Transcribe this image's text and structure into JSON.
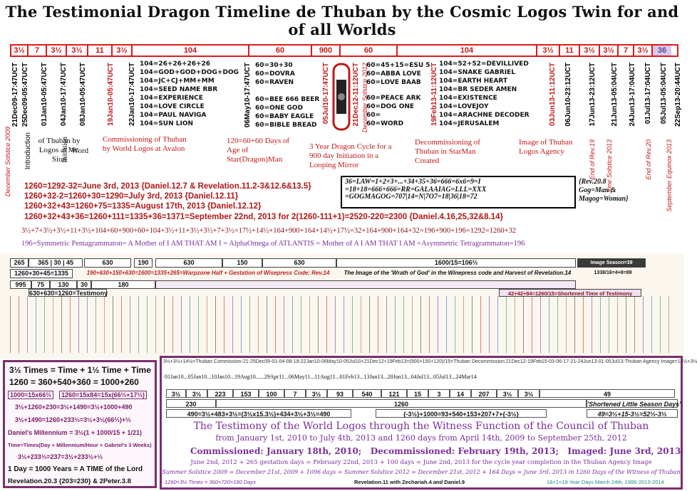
{
  "title": "The Testimonial Dragon Timeline de Thuban by the Cosmic Logos Twin for and of all Worlds",
  "timeline": {
    "segments": [
      "3½",
      "7",
      "3½",
      "3½",
      "11",
      "3½",
      "104",
      "60",
      "900",
      "60",
      "104",
      "3½",
      "11",
      "3½",
      "3½",
      "7",
      "3½",
      "36"
    ]
  },
  "dates_left": [
    "December Solstice 2009",
    "21Dec09-17:47UCT",
    "25Dec09-05:47UCT",
    "Introduction",
    "01Jan10-05:47UCT",
    "04Jan10-17:47UCT",
    "08Jan10-05:47UCT",
    "19Jan10-05:47UCT",
    "22Jan10-17:47UCT",
    "06May10-17:47UCT",
    "05Jul10-17:47UCT",
    "21Dec12-11:12UCT",
    "December Solstice 2012",
    "19Feb13-11:12UCT"
  ],
  "dates_right": [
    "03Jun13-11:12UCT",
    "06Jun10-23:12UCT",
    "17Jun13-23:12UCT",
    "End of Rev.19",
    "June Solstice 2013",
    "21Jun13-05:04UCT",
    "24Jun13-17:04UCT",
    "01Jul13-17:04UCT",
    "End of Rev.20",
    "05Jul13-05:04UCT",
    "September Equinox 2013",
    "22Sep13-20:44UCT"
  ],
  "stack_104_left": [
    "104=26+26+26+26",
    "104=GOD+GOD+DOG+DOG",
    "104=JC+CJ+MM+MM",
    "104=SEED NAME RBR",
    "104=EXPERIENCE",
    "104=LOVE CIRCLE",
    "104=PAUL NAVIGA",
    "104=SUN LION"
  ],
  "stack_60_left_top": [
    "60=30+30",
    "60=DOVRA",
    "60=RAVEN"
  ],
  "stack_60_left_bottom": [
    "60=BEE 666 BEER",
    "60=ONE GOD",
    "60=BABY EAGLE",
    "60=BIBLE BREAD"
  ],
  "stack_60_right_top": [
    "60=45+15=ESU 5",
    "60=ABBA LOVE",
    "60=LOVE BAAB"
  ],
  "stack_60_right_bottom": [
    "60=PEACE ARK",
    "60=DOG ONE",
    "60=",
    "60=WORD"
  ],
  "stack_104_right": [
    "104=52+52=DEVILLIVED",
    "104=SNAKE GABRIEL",
    "104=EARTH HEART",
    "104=BR SEDER AMEN",
    "104=EXISTENCE",
    "104=LOVEJOY",
    "104=ARACHNE DECODER",
    "104=JERUSALEM"
  ],
  "notes": {
    "of_thuban": "of Thuban by Logos at Mt. Sion",
    "initiation": "Initiation",
    "word": "Word",
    "commissioning": "Commissioning of Thuban by World Logos at Avalon",
    "days_age": "120=60+60 Days of Age of Star(Dragon)Man",
    "dragon_cycle": "3 Year Dragon Cycle for a 900 day Initiation in a Looping Mirror",
    "decommissioning": "Decommissioning of Thuban in StarMan Created",
    "image_agency": "Image of Thuban Logos Agency"
  },
  "equations": [
    "1260=1292-32=June 3rd, 2013 {Daniel.12.7 & Revelation.11.2-3&12.6&13.5}",
    "1260+32-2=1260+30=1290=July 3rd, 2013 {Daniel.12.11}",
    "1260+32+43=1260+75=1335=August 17th, 2013 {Daniel.12.12}",
    "1260+32+43+36=1260+111=1335+36=1371=September 22nd, 2013 for 2(1260-111+1)=2520-220=2300 {Daniel.4.16,25,32&8.14}"
  ],
  "eqbox": [
    "36=LAW=1+2+3+...+34+35+36=666=6x6=9=I",
    "=18+18=666+666=RR=GALAAIAG=LLL=XXX",
    "=GOGMAGOG=707|14=N|7O7=18|36|18=72"
  ],
  "rev_note": [
    "{Rev.20.8",
    "Gog=Man &",
    "Magog=Woman}"
  ],
  "sum_line": "3½+7+3½+3½+11+3½+104+60+900+60+104+3½+11+3½+3½+7+3½=17½+14½+164+900+164+14½+17½=32+164+900+164+32=196+900+196=1292=1260+32",
  "sym_line": "196=Symmetric Pentagrammaton= A Mother of I AM THAT AM I = AlphaOmega of ATLANTIS = Mother of A I AM THAT I AM =Asymmetric Tetragrammaton=196",
  "chart_band": {
    "top_cells": [
      "265",
      "630",
      "365",
      "30",
      "45",
      "190",
      "630",
      "150",
      "630",
      "1600/15=106⅔",
      "Image Season=39",
      "1338/16=4+8=89"
    ],
    "caption_a": "190+630+150+630=1600=1335+265=Warpzone Half + Gestation of Wisepress Code; Rev.14",
    "caption_b": "The Image of the 'Wrath of God' in the Winepress code and Harvest of Revelation.14",
    "row2": [
      "1260+30+45=1335",
      "995",
      "75",
      "130",
      "30",
      "180"
    ],
    "row3": "630+630=1260=Testimony",
    "short_time": "42+42+84=1260/15=Shortened Time of Testimony",
    "thuban_line": "3½+3½+14½=Thuban Commission-21-25Dec09-01-04-08-19-22Jan10-06May10-05Jul10+21Dec12+19Feb13=(900+150+120)/15=Thuban Decommission:21Dec12-19Feb15-03-06-17-21-24Jun13-01-05Jul13-Thuban Agency Image=14½+3½"
  },
  "bottom_left": {
    "l1": "3½ Times = Time + 1½ Time + Time",
    "l2": "1260 = 360+540+360 = 1000+260",
    "l3a": "1000=15x66⅔",
    "l3b": "1260=15x84=15x(66⅔+17⅓)",
    "l4": "3½+1260+230=3½+1490=3½+1000+490",
    "l5": "3½+1490=1260+233⅓=3½+3½(66⅔)+⅓",
    "l6": "Daniel's Millennium = 3½(1 + 1000/15 + 1/21)",
    "l7": "Time=Times(Day + Millennium/Hour + Gabriel's 3 Weeks)",
    "l8": "3½+233⅓=237=3½+233½+⅓",
    "l9": "1 Day = 1000 Years = A TIME of the Lord",
    "l10": "Revelation.20.3 {203=230} & 2Peter.3.8"
  },
  "bottom_right": {
    "dates_row": "01Jan10...05Jan10...10Jan10...19Aug10......29Apr11...06May11...11Aug11...01Feb13...13Jun13...20Jun13...04Jul13...05Jul13...24Mar14",
    "values_row": [
      "3½",
      "3½",
      "223",
      "153",
      "100",
      "7",
      "3½",
      "93",
      "540",
      "121",
      "15",
      "3",
      "14",
      "207",
      "3½",
      "3½",
      "49"
    ],
    "mid_row": [
      "230",
      "1260",
      "'Shortened Little Season Days'"
    ],
    "calc_a": "490=3½+483+3½=(3½x15.3½)+434+3½+3½=490",
    "calc_b": "{-3½}+1000=93+540+153+207+7+{-3½}",
    "calc_c": "49=3½+15-3½=52⅓-3⅓",
    "heading": "The Testimony of the World Logos through the Witness Function of the Council of Thuban",
    "sub": "from January 1st, 2010 to July 4th, 2013 and 1260 days from April 14th, 2009 to September 25th, 2012",
    "commissioned": "Commissioned: January 18th, 2010;",
    "decommissioned": "Decommissioned: February 19th, 2013;",
    "imaged": "Imaged: June 3rd, 2013",
    "gestation": "June 2nd, 2012 + 265 gestation days = February 22nd, 2013 + 100 days = June 2nd, 2013 for the cycle year completion in the Thuban Agency Image",
    "solstice": "Summer Solstice 2009 = December 21st, 2009 + 1096 days = Summer Solstice 2012 = December 21st, 2012 + 164 Days = June 3rd, 2013 in 1260 Days of the Witness of Thuban",
    "footer_a": "1260=3½ Times = 360+720+180 Days",
    "footer_b": "Revelation.11 with Zechariah.4 and Daniel.9",
    "footer_c": "18+1=19 Year Days March 24th, 1995-2013-2014"
  },
  "colors": {
    "red": "#c01818",
    "purple": "#7a2e9a",
    "frame": "#7a2e6e"
  }
}
